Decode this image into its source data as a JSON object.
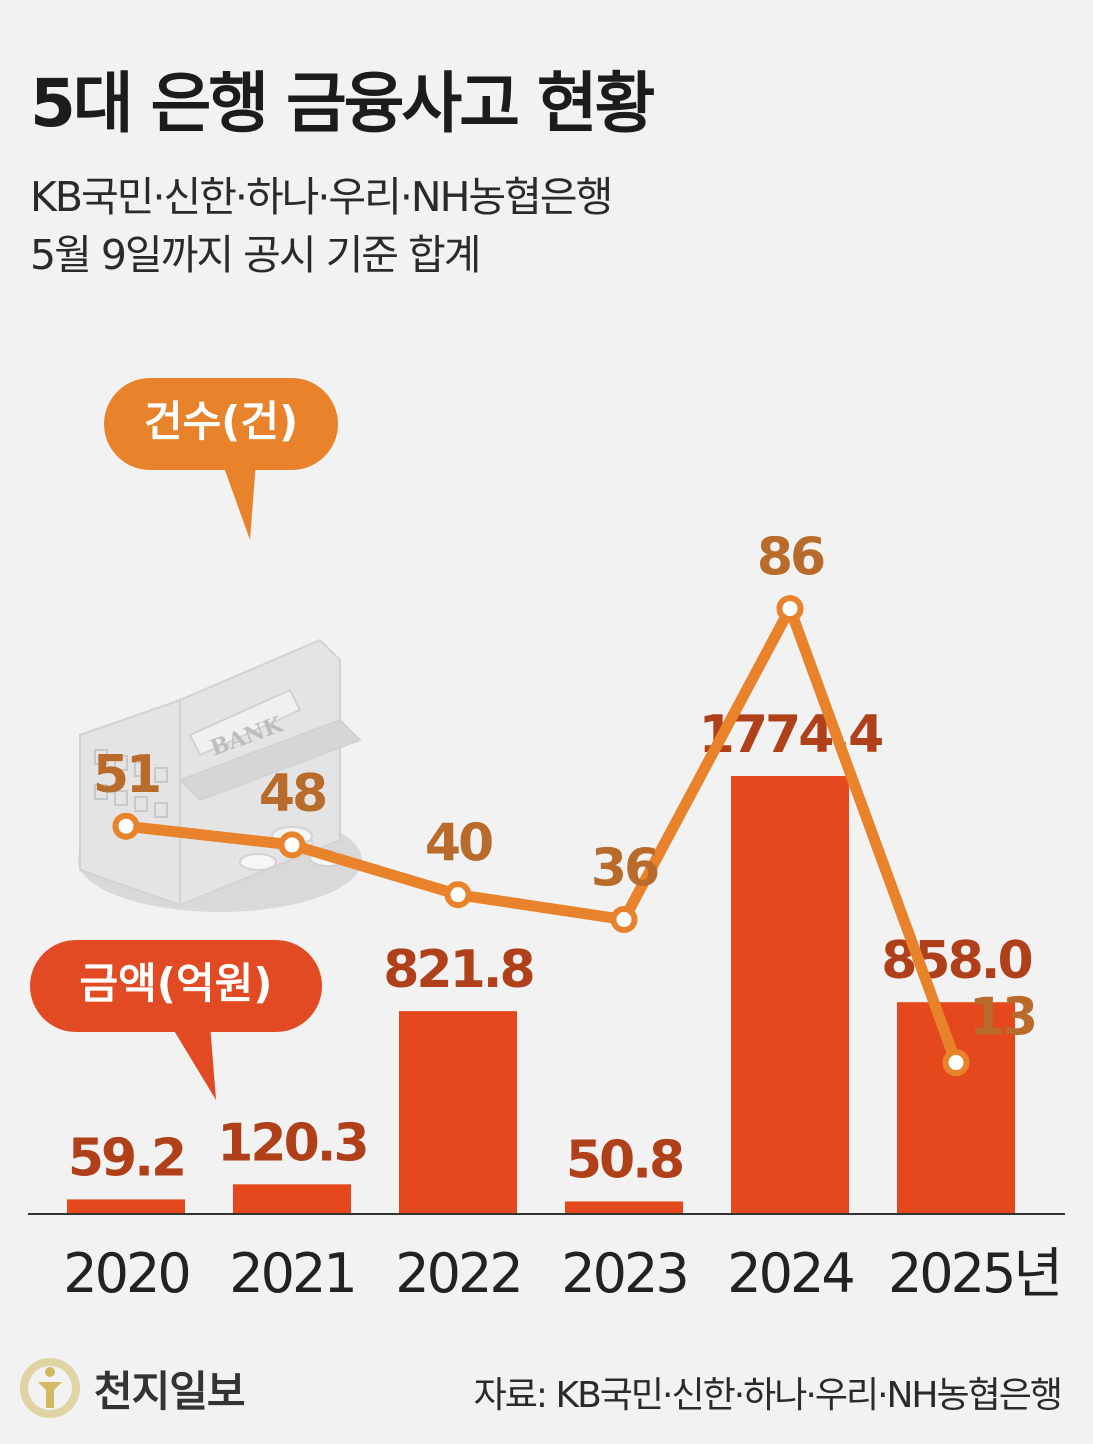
{
  "title": "5대 은행 금융사고 현황",
  "subtitle": {
    "line1": "KB국민·신한·하나·우리·NH농협은행",
    "line2": "5월 9일까지 공시 기준 합계"
  },
  "legend": {
    "count_label": "건수(건)",
    "amount_label": "금액(억원)"
  },
  "illustration": {
    "building_sign": "BANK"
  },
  "colors": {
    "line": "#e8832c",
    "line_label": "#b86b2a",
    "bar": "#e5481c",
    "bar_label": "#b0401a",
    "amount_badge": "#e24a24"
  },
  "chart_data": {
    "type": "bar+line",
    "categories": [
      "2020",
      "2021",
      "2022",
      "2023",
      "2024",
      "2025년"
    ],
    "series": [
      {
        "name": "건수(건)",
        "type": "line",
        "values": [
          51,
          48,
          40,
          36,
          86,
          13
        ],
        "labels": [
          "51",
          "48",
          "40",
          "36",
          "86",
          "13"
        ]
      },
      {
        "name": "금액(억원)",
        "type": "bar",
        "values": [
          59.2,
          120.3,
          821.8,
          50.8,
          1774.4,
          858.0
        ],
        "labels": [
          "59.2",
          "120.3",
          "821.8",
          "50.8",
          "1774.4",
          "858.0"
        ]
      }
    ],
    "title": "5대 은행 금융사고 현황"
  },
  "footer": {
    "logo": "천지일보",
    "source": "자료: KB국민·신한·하나·우리·NH농협은행"
  }
}
